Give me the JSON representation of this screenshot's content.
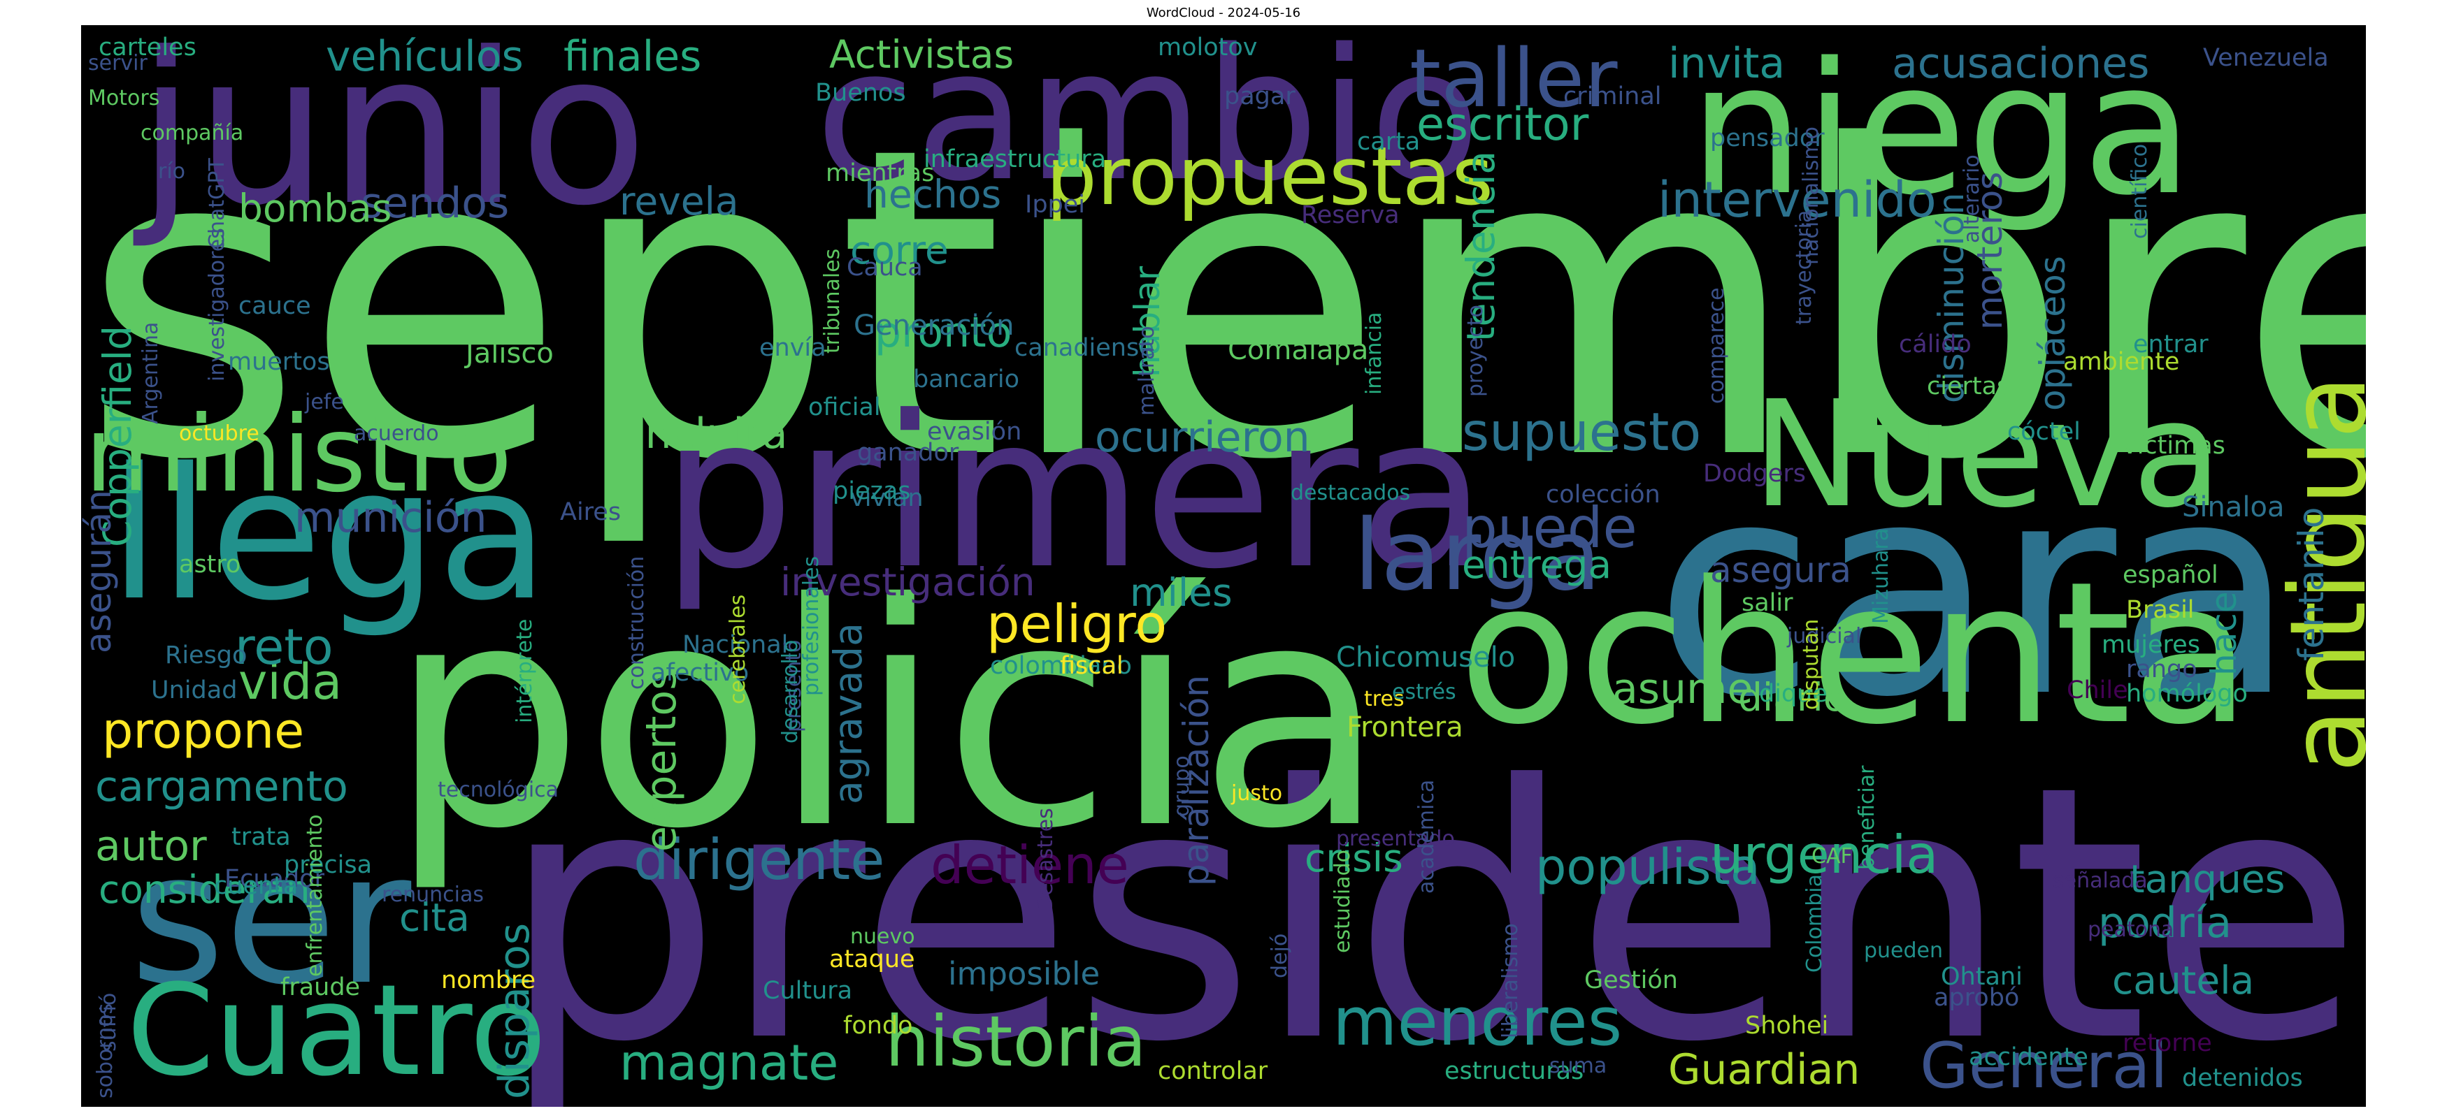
{
  "title": "WordCloud - 2024-05-16",
  "palette": [
    "#440154",
    "#472d7b",
    "#3b528b",
    "#2c728e",
    "#21918c",
    "#28ae80",
    "#5ec962",
    "#addc30",
    "#fde725"
  ],
  "words": [
    {
      "text": "septiembre",
      "color": "#5ec962"
    },
    {
      "text": "presidente",
      "color": "#472d7b"
    },
    {
      "text": "policía",
      "color": "#5ec962"
    },
    {
      "text": "cara",
      "color": "#2c728e"
    },
    {
      "text": "junio",
      "color": "#472d7b"
    },
    {
      "text": "primera",
      "color": "#472d7b"
    },
    {
      "text": "ochenta",
      "color": "#5ec962"
    },
    {
      "text": "cambio",
      "color": "#472d7b"
    },
    {
      "text": "niega",
      "color": "#5ec962"
    },
    {
      "text": "llega",
      "color": "#21918c"
    },
    {
      "text": "ser",
      "color": "#2c728e"
    },
    {
      "text": "Cuatro",
      "color": "#28ae80"
    },
    {
      "text": "Nueva",
      "color": "#5ec962"
    },
    {
      "text": "ministro",
      "color": "#5ec962"
    },
    {
      "text": "antigua",
      "color": "#addc30"
    },
    {
      "text": "propuestas",
      "color": "#addc30"
    },
    {
      "text": "taller",
      "color": "#3b528b"
    },
    {
      "text": "larga",
      "color": "#3b528b"
    },
    {
      "text": "historia",
      "color": "#5ec962"
    },
    {
      "text": "General",
      "color": "#3b528b"
    },
    {
      "text": "menores",
      "color": "#21918c"
    },
    {
      "text": "populista",
      "color": "#21918c"
    },
    {
      "text": "urgencia",
      "color": "#28ae80"
    },
    {
      "text": "magnate",
      "color": "#28ae80"
    },
    {
      "text": "dirigente",
      "color": "#2c728e"
    },
    {
      "text": "detiene",
      "color": "#440154"
    },
    {
      "text": "Guardian",
      "color": "#addc30"
    },
    {
      "text": "peligro",
      "color": "#fde725"
    },
    {
      "text": "supuesto",
      "color": "#2c728e"
    },
    {
      "text": "puede",
      "color": "#3b528b"
    },
    {
      "text": "intervenido",
      "color": "#2c728e"
    },
    {
      "text": "escritor",
      "color": "#28ae80"
    },
    {
      "text": "vehículos",
      "color": "#21918c"
    },
    {
      "text": "finales",
      "color": "#28ae80"
    },
    {
      "text": "Activistas",
      "color": "#5ec962"
    },
    {
      "text": "invita",
      "color": "#21918c"
    },
    {
      "text": "acusaciones",
      "color": "#2c728e"
    },
    {
      "text": "sendos",
      "color": "#3b528b"
    },
    {
      "text": "revela",
      "color": "#2c728e"
    },
    {
      "text": "hechos",
      "color": "#2c728e"
    },
    {
      "text": "bombas",
      "color": "#5ec962"
    },
    {
      "text": "corre",
      "color": "#21918c"
    },
    {
      "text": "pronto",
      "color": "#28ae80"
    },
    {
      "text": "incluirá",
      "color": "#5ec962"
    },
    {
      "text": "ocurrieron",
      "color": "#2c728e"
    },
    {
      "text": "munición",
      "color": "#3b528b"
    },
    {
      "text": "investigación",
      "color": "#472d7b"
    },
    {
      "text": "miles",
      "color": "#21918c"
    },
    {
      "text": "entrega",
      "color": "#28ae80"
    },
    {
      "text": "asume",
      "color": "#5ec962"
    },
    {
      "text": "diario",
      "color": "#5ec962"
    },
    {
      "text": "asegura",
      "color": "#3b528b"
    },
    {
      "text": "propone",
      "color": "#fde725"
    },
    {
      "text": "vida",
      "color": "#5ec962"
    },
    {
      "text": "reto",
      "color": "#21918c"
    },
    {
      "text": "cargamento",
      "color": "#21918c"
    },
    {
      "text": "autor",
      "color": "#5ec962"
    },
    {
      "text": "consideran",
      "color": "#28ae80"
    },
    {
      "text": "cita",
      "color": "#21918c"
    },
    {
      "text": "crisis",
      "color": "#28ae80"
    },
    {
      "text": "podría",
      "color": "#21918c"
    },
    {
      "text": "tanques",
      "color": "#21918c"
    },
    {
      "text": "cautela",
      "color": "#21918c"
    },
    {
      "text": "imposible",
      "color": "#2c728e"
    },
    {
      "text": "expertos",
      "color": "#5ec962"
    },
    {
      "text": "disparos",
      "color": "#21918c"
    },
    {
      "text": "agravada",
      "color": "#2c728e"
    },
    {
      "text": "parálización",
      "color": "#3b528b"
    },
    {
      "text": "tendencia",
      "color": "#28ae80"
    },
    {
      "text": "hablar",
      "color": "#28ae80"
    },
    {
      "text": "Copperfield",
      "color": "#28ae80"
    },
    {
      "text": "asegurán",
      "color": "#3b528b"
    },
    {
      "text": "morteros",
      "color": "#3b528b"
    },
    {
      "text": "disminución",
      "color": "#2c728e"
    },
    {
      "text": "opiáceos",
      "color": "#2c728e"
    },
    {
      "text": "hace",
      "color": "#21918c"
    },
    {
      "text": "fentanilo",
      "color": "#2c728e"
    },
    {
      "text": "Jalisco",
      "color": "#5ec962"
    },
    {
      "text": "Comalapa",
      "color": "#5ec962"
    },
    {
      "text": "Chicomuselo",
      "color": "#21918c"
    },
    {
      "text": "Frontera",
      "color": "#addc30"
    },
    {
      "text": "Generación",
      "color": "#2c728e"
    },
    {
      "text": "Sinaloa",
      "color": "#2c728e"
    },
    {
      "text": "muertos",
      "color": "#2c728e"
    },
    {
      "text": "Riesgo",
      "color": "#2c728e"
    },
    {
      "text": "Unidad",
      "color": "#2c728e"
    },
    {
      "text": "astro",
      "color": "#5ec962"
    },
    {
      "text": "trata",
      "color": "#21918c"
    },
    {
      "text": "Ecuador",
      "color": "#3b528b"
    },
    {
      "text": "cuenta",
      "color": "#21918c"
    },
    {
      "text": "precisa",
      "color": "#21918c"
    },
    {
      "text": "fraude",
      "color": "#5ec962"
    },
    {
      "text": "nombre",
      "color": "#fde725"
    },
    {
      "text": "ataque",
      "color": "#fde725"
    },
    {
      "text": "fondo",
      "color": "#addc30"
    },
    {
      "text": "Cultura",
      "color": "#21918c"
    },
    {
      "text": "controlar",
      "color": "#addc30"
    },
    {
      "text": "estructuras",
      "color": "#28ae80"
    },
    {
      "text": "Gestión",
      "color": "#5ec962"
    },
    {
      "text": "Ohtani",
      "color": "#21918c"
    },
    {
      "text": "Shohei",
      "color": "#addc30"
    },
    {
      "text": "aprobó",
      "color": "#3b528b"
    },
    {
      "text": "retorne",
      "color": "#440154"
    },
    {
      "text": "detenidos",
      "color": "#21918c"
    },
    {
      "text": "accidente",
      "color": "#21918c"
    },
    {
      "text": "salir",
      "color": "#5ec962"
    },
    {
      "text": "Brasil",
      "color": "#addc30"
    },
    {
      "text": "español",
      "color": "#5ec962"
    },
    {
      "text": "mujeres",
      "color": "#28ae80"
    },
    {
      "text": "rango",
      "color": "#3b528b"
    },
    {
      "text": "Chile",
      "color": "#440154"
    },
    {
      "text": "homólogo",
      "color": "#28ae80"
    },
    {
      "text": "dique",
      "color": "#28ae80"
    },
    {
      "text": "víctimas",
      "color": "#5ec962"
    },
    {
      "text": "cóctel",
      "color": "#21918c"
    },
    {
      "text": "ciertas",
      "color": "#5ec962"
    },
    {
      "text": "entrar",
      "color": "#21918c"
    },
    {
      "text": "ambiente",
      "color": "#addc30"
    },
    {
      "text": "cálido",
      "color": "#472d7b"
    },
    {
      "text": "Dodgers",
      "color": "#472d7b"
    },
    {
      "text": "colección",
      "color": "#3b528b"
    },
    {
      "text": "colombiano",
      "color": "#21918c"
    },
    {
      "text": "fiscal",
      "color": "#fde725"
    },
    {
      "text": "afectivo",
      "color": "#2c728e"
    },
    {
      "text": "Nacional",
      "color": "#2c728e"
    },
    {
      "text": "Aires",
      "color": "#3b528b"
    },
    {
      "text": "vivían",
      "color": "#2c728e"
    },
    {
      "text": "piezas",
      "color": "#21918c"
    },
    {
      "text": "ganador",
      "color": "#3b528b"
    },
    {
      "text": "evasión",
      "color": "#3b528b"
    },
    {
      "text": "oficial",
      "color": "#21918c"
    },
    {
      "text": "bancario",
      "color": "#2c728e"
    },
    {
      "text": "canadiense",
      "color": "#2c728e"
    },
    {
      "text": "envía",
      "color": "#2c728e"
    },
    {
      "text": "Cauca",
      "color": "#3b528b"
    },
    {
      "text": "cauce",
      "color": "#2c728e"
    },
    {
      "text": "Ippei",
      "color": "#3b528b"
    },
    {
      "text": "infraestructura",
      "color": "#28ae80"
    },
    {
      "text": "mientras",
      "color": "#5ec962"
    },
    {
      "text": "carta",
      "color": "#21918c"
    },
    {
      "text": "criminal",
      "color": "#3b528b"
    },
    {
      "text": "pensador",
      "color": "#2c728e"
    },
    {
      "text": "pagar",
      "color": "#3b528b"
    },
    {
      "text": "molotov",
      "color": "#21918c"
    },
    {
      "text": "Buenos",
      "color": "#21918c"
    },
    {
      "text": "Reserva",
      "color": "#472d7b"
    },
    {
      "text": "Venezuela",
      "color": "#3b528b"
    },
    {
      "text": "carteles",
      "color": "#28ae80"
    },
    {
      "text": "servir",
      "color": "#3b528b"
    },
    {
      "text": "Motors",
      "color": "#5ec962"
    },
    {
      "text": "compañía",
      "color": "#5ec962"
    },
    {
      "text": "río",
      "color": "#3b528b"
    },
    {
      "text": "jefe",
      "color": "#3b528b"
    },
    {
      "text": "octubre",
      "color": "#fde725"
    },
    {
      "text": "acuerdo",
      "color": "#3b528b"
    },
    {
      "text": "destacados",
      "color": "#21918c"
    },
    {
      "text": "tres",
      "color": "#fde725"
    },
    {
      "text": "estrés",
      "color": "#21918c"
    },
    {
      "text": "judicial",
      "color": "#3b528b"
    },
    {
      "text": "presentado",
      "color": "#472d7b"
    },
    {
      "text": "nuevo",
      "color": "#5ec962"
    },
    {
      "text": "justo",
      "color": "#fde725"
    },
    {
      "text": "CAF",
      "color": "#5ec962"
    },
    {
      "text": "señalada",
      "color": "#472d7b"
    },
    {
      "text": "peatona",
      "color": "#472d7b"
    },
    {
      "text": "pueden",
      "color": "#21918c"
    },
    {
      "text": "suma",
      "color": "#3b528b"
    },
    {
      "text": "renuncias",
      "color": "#3b528b"
    },
    {
      "text": "tecnológica",
      "color": "#3b528b"
    },
    {
      "text": "ChatGPT",
      "color": "#3b528b"
    },
    {
      "text": "investigadores",
      "color": "#3b528b"
    },
    {
      "text": "Argentina",
      "color": "#3b528b"
    },
    {
      "text": "tribunales",
      "color": "#5ec962"
    },
    {
      "text": "maltrato",
      "color": "#3b528b"
    },
    {
      "text": "infancia",
      "color": "#28ae80"
    },
    {
      "text": "proyecto",
      "color": "#3b528b"
    },
    {
      "text": "comparece",
      "color": "#3b528b"
    },
    {
      "text": "trayectoria",
      "color": "#3b528b"
    },
    {
      "text": "nacionalismo",
      "color": "#3b528b"
    },
    {
      "text": "alterario",
      "color": "#3b528b"
    },
    {
      "text": "científico",
      "color": "#2c728e"
    },
    {
      "text": "construcción",
      "color": "#3b528b"
    },
    {
      "text": "cerebrales",
      "color": "#addc30"
    },
    {
      "text": "presentó",
      "color": "#3b528b"
    },
    {
      "text": "profesionales",
      "color": "#21918c"
    },
    {
      "text": "desarrollo",
      "color": "#21918c"
    },
    {
      "text": "intérprete",
      "color": "#28ae80"
    },
    {
      "text": "enfrentamiento",
      "color": "#5ec962"
    },
    {
      "text": "Desastres",
      "color": "#472d7b"
    },
    {
      "text": "grupo",
      "color": "#3b528b"
    },
    {
      "text": "dejó",
      "color": "#3b528b"
    },
    {
      "text": "estudiado",
      "color": "#5ec962"
    },
    {
      "text": "liberalismo",
      "color": "#3b528b"
    },
    {
      "text": "académica",
      "color": "#3b528b"
    },
    {
      "text": "sobornos",
      "color": "#3b528b"
    },
    {
      "text": "sufrió",
      "color": "#3b528b"
    },
    {
      "text": "Colombia",
      "color": "#21918c"
    },
    {
      "text": "beneficiar",
      "color": "#28ae80"
    },
    {
      "text": "disputan",
      "color": "#addc30"
    },
    {
      "text": "Mizuhara",
      "color": "#21918c"
    }
  ]
}
